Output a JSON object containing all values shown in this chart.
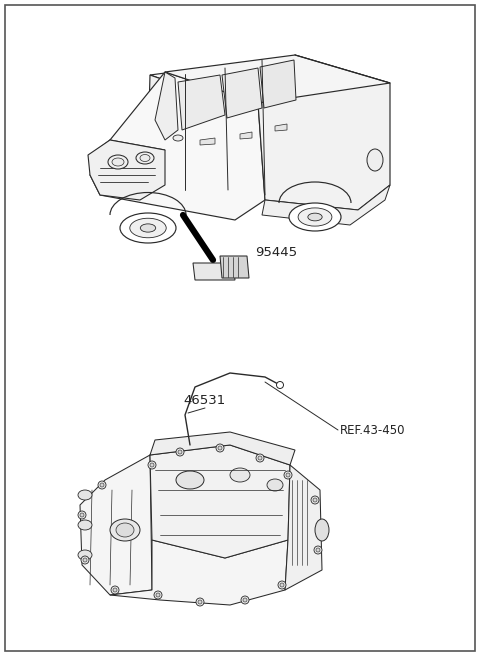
{
  "background_color": "#ffffff",
  "border_color": "#555555",
  "line_color": "#2a2a2a",
  "label_color": "#222222",
  "ref_color": "#333333",
  "part_label_1": "95445",
  "part_label_2": "46531",
  "part_label_3": "REF.43-450",
  "figsize": [
    4.8,
    6.56
  ],
  "dpi": 100
}
